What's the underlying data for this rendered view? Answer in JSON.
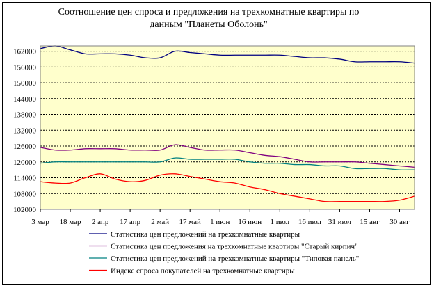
{
  "chart_data": {
    "type": "line",
    "title": "Соотношение цен спроса и предложения на трехкомнатные квартиры      по данным \"Планеты Оболонь\"",
    "title_lines": [
      "Соотношение цен спроса и предложения на трехкомнатные квартиры      по",
      "данным \"Планеты Оболонь\""
    ],
    "xlabel": "",
    "ylabel": "",
    "ylim": [
      102000,
      164000
    ],
    "yticks": [
      162000,
      156000,
      150000,
      144000,
      138000,
      132000,
      126000,
      120000,
      114000,
      108000,
      102000
    ],
    "ytick_labels": [
      "162000",
      "156000",
      "150000",
      "144000",
      "138000",
      "132000",
      "126000",
      "120000",
      "114000",
      "108000",
      "102000"
    ],
    "xtick_labels": [
      "3 мар",
      "18 мар",
      "2 апр",
      "17 апр",
      "2 май",
      "17 май",
      "1 июн",
      "16 июн",
      "1 июл",
      "16 июл",
      "31 июл",
      "15 авг",
      "30 авг"
    ],
    "x": [
      "3 мар",
      "10 мар",
      "18 мар",
      "25 мар",
      "2 апр",
      "10 апр",
      "17 апр",
      "22 апр",
      "27 апр",
      "2 май",
      "8 май",
      "17 май",
      "25 май",
      "1 июн",
      "8 июн",
      "16 июн",
      "24 июн",
      "1 июл",
      "8 июл",
      "16 июл",
      "24 июл",
      "31 июл",
      "8 авг",
      "15 авг",
      "23 авг",
      "30 авг"
    ],
    "grid": true,
    "plot_background": "#ffffcc",
    "legend_position": "bottom",
    "series": [
      {
        "name": "Статистика цен предложений на трехкомнатные квартиры",
        "color": "#000080",
        "values": [
          163000,
          164000,
          162500,
          161000,
          161000,
          161000,
          160500,
          159500,
          159500,
          162000,
          161500,
          161000,
          160500,
          160500,
          160500,
          160500,
          160500,
          160000,
          159500,
          159500,
          159000,
          158000,
          158000,
          158000,
          158000,
          157500
        ]
      },
      {
        "name": "Статистика цен предложения на трехкомнатные квартиры \"Старый кирпич\"",
        "color": "#800080",
        "values": [
          125500,
          124500,
          124500,
          125000,
          125000,
          125000,
          124500,
          124500,
          124500,
          126500,
          125500,
          124500,
          124500,
          124500,
          123500,
          122500,
          122000,
          121000,
          120000,
          120000,
          120000,
          120000,
          119500,
          119000,
          118500,
          118000
        ]
      },
      {
        "name": "Статистика цен предложений на трехкомнатные квартиры \"Типовая панель\"",
        "color": "#008080",
        "values": [
          119500,
          120000,
          120000,
          120000,
          120000,
          120000,
          120000,
          120000,
          120000,
          121500,
          121000,
          121000,
          121000,
          121000,
          120000,
          119500,
          119500,
          119000,
          119000,
          118500,
          118500,
          117500,
          117500,
          117500,
          117000,
          117000
        ]
      },
      {
        "name": "Индекс спроса покупателей  на трехкомнатные квартиры",
        "color": "#ff0000",
        "values": [
          112500,
          112000,
          112000,
          114000,
          115500,
          113500,
          112500,
          113000,
          115000,
          115500,
          114500,
          113500,
          112500,
          112000,
          110500,
          109500,
          108000,
          107000,
          106000,
          105000,
          105000,
          105000,
          105000,
          105000,
          105500,
          107000
        ]
      }
    ]
  }
}
